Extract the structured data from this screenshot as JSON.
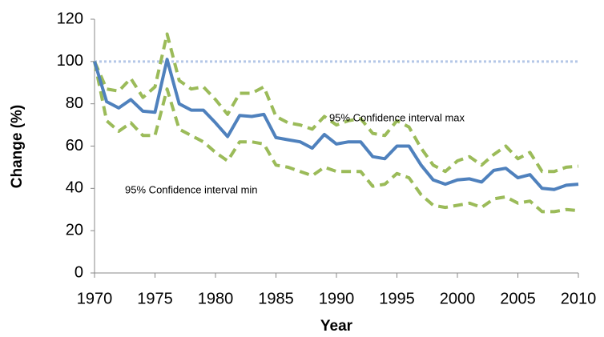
{
  "chart_data": {
    "type": "line",
    "y_label": "Change (%)",
    "x_label": "Year",
    "x": [
      1970,
      1971,
      1972,
      1973,
      1974,
      1975,
      1976,
      1977,
      1978,
      1979,
      1980,
      1981,
      1982,
      1983,
      1984,
      1985,
      1986,
      1987,
      1988,
      1989,
      1990,
      1991,
      1992,
      1993,
      1994,
      1995,
      1996,
      1997,
      1998,
      1999,
      2000,
      2001,
      2002,
      2003,
      2004,
      2005,
      2006,
      2007,
      2008,
      2009,
      2010
    ],
    "series": [
      {
        "color": "#9bbb59",
        "dashed": true,
        "values": [
          100,
          87,
          86,
          92,
          83,
          88,
          113,
          91,
          87,
          88,
          82,
          75,
          85,
          85,
          88,
          74,
          71,
          70,
          68,
          74,
          70,
          72,
          73,
          66,
          65,
          72,
          69,
          59,
          51,
          48,
          53,
          55,
          51,
          56,
          60,
          54,
          57,
          48,
          48,
          50,
          50.5
        ]
      },
      {
        "color": "#9bbb59",
        "dashed": true,
        "values": [
          100,
          72,
          67,
          71,
          65,
          65,
          87,
          68,
          65,
          62,
          57,
          53,
          62,
          62,
          61,
          51,
          50,
          48,
          46,
          50,
          48,
          48,
          48,
          41,
          42,
          47,
          45,
          37,
          32,
          31,
          32,
          33,
          31,
          35,
          36,
          33,
          34,
          29,
          29,
          30,
          29.5
        ]
      },
      {
        "color": "#4f81bd",
        "dashed": false,
        "values": [
          100,
          81,
          78,
          82,
          76.5,
          76,
          101,
          80,
          77,
          77,
          71,
          64.5,
          74.5,
          74,
          75,
          64,
          63,
          62,
          59,
          65.5,
          61,
          62,
          62,
          55,
          54,
          60,
          60,
          51,
          44,
          42,
          44,
          44.5,
          43,
          48.5,
          49.5,
          45,
          46.5,
          40,
          39.5,
          41.5,
          42
        ]
      }
    ],
    "reference_line": {
      "value": 100,
      "color": "#b4c7e7"
    },
    "annotations": [
      {
        "text": "95% Confidence interval max",
        "x": 1995,
        "y": 73
      },
      {
        "text": "95% Confidence interval min",
        "x": 1978,
        "y": 39
      }
    ],
    "xlim": [
      1970,
      2010
    ],
    "xticks": [
      1970,
      1975,
      1980,
      1985,
      1990,
      1995,
      2000,
      2005,
      2010
    ],
    "ylim": [
      0,
      120
    ],
    "yticks": [
      0,
      20,
      40,
      60,
      80,
      100,
      120
    ]
  }
}
